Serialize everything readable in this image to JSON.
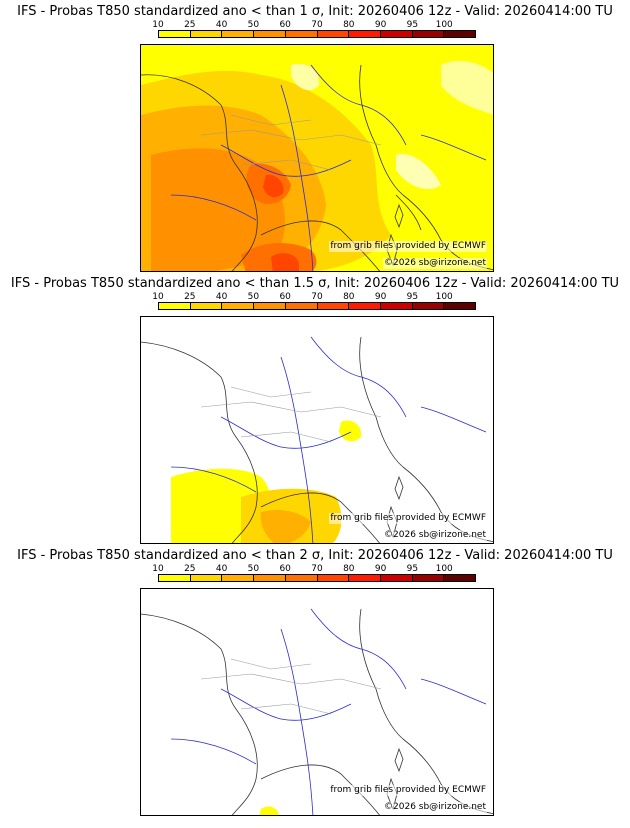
{
  "colorbar": {
    "ticks": [
      "10",
      "25",
      "40",
      "50",
      "60",
      "70",
      "80",
      "90",
      "95",
      "100"
    ],
    "colors": [
      "#ffff00",
      "#ffd700",
      "#ffb000",
      "#ff9000",
      "#ff7000",
      "#ff4500",
      "#ff1a00",
      "#cc0000",
      "#990000",
      "#5c0000"
    ]
  },
  "credit_line1": "from grib files provided by ECMWF",
  "credit_line2": "©2026 sb@irizone.net",
  "panels": [
    {
      "title": "IFS - Probas T850  standardized ano < than 1 σ, Init: 20260406 12z - Valid: 20260414:00 TU",
      "threshold_sigma": 1
    },
    {
      "title": "IFS - Probas T850  standardized ano < than 1.5 σ, Init: 20260406 12z - Valid: 20260414:00 TU",
      "threshold_sigma": 1.5
    },
    {
      "title": "IFS - Probas T850  standardized ano < than 2 σ, Init: 20260406 12z - Valid: 20260414:00 TU",
      "threshold_sigma": 2
    }
  ]
}
